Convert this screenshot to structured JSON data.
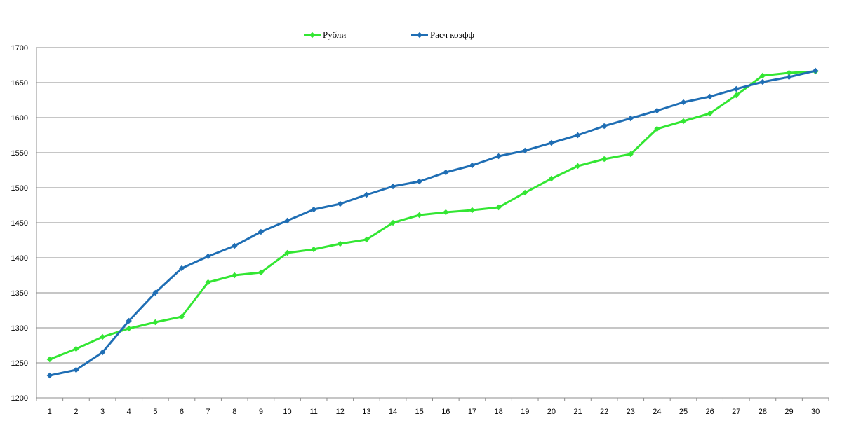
{
  "chart_data": {
    "type": "line",
    "title": "",
    "xlabel": "",
    "ylabel": "",
    "x": [
      1,
      2,
      3,
      4,
      5,
      6,
      7,
      8,
      9,
      10,
      11,
      12,
      13,
      14,
      15,
      16,
      17,
      18,
      19,
      20,
      21,
      22,
      23,
      24,
      25,
      26,
      27,
      28,
      29,
      30
    ],
    "ylim": [
      1200,
      1700
    ],
    "yticks": [
      1200,
      1250,
      1300,
      1350,
      1400,
      1450,
      1500,
      1550,
      1600,
      1650,
      1700
    ],
    "grid": "horizontal",
    "legend_position": "top",
    "series": [
      {
        "name": "Рубли",
        "color": "#33e633",
        "marker": "diamond",
        "values": [
          1255,
          1270,
          1287,
          1299,
          1308,
          1316,
          1365,
          1375,
          1379,
          1407,
          1412,
          1420,
          1426,
          1450,
          1461,
          1465,
          1468,
          1472,
          1493,
          1513,
          1531,
          1541,
          1548,
          1584,
          1595,
          1606,
          1632,
          1660,
          1664,
          1666
        ]
      },
      {
        "name": "Расч коэфф",
        "color": "#1f6eb4",
        "marker": "diamond",
        "values": [
          1232,
          1240,
          1265,
          1310,
          1350,
          1385,
          1402,
          1417,
          1437,
          1453,
          1469,
          1477,
          1490,
          1502,
          1509,
          1522,
          1532,
          1545,
          1553,
          1564,
          1575,
          1588,
          1599,
          1610,
          1622,
          1630,
          1641,
          1651,
          1658,
          1667
        ]
      }
    ]
  }
}
